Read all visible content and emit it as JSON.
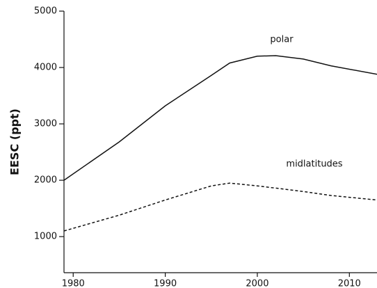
{
  "chart_data": {
    "type": "line",
    "y_label": "EESC (ppt)",
    "x": [
      1979,
      1985,
      1990,
      1995,
      1997,
      2000,
      2002,
      2005,
      2008,
      2013
    ],
    "series": [
      {
        "name": "polar",
        "color": "#111111",
        "style": "solid",
        "values": [
          2000,
          2680,
          3320,
          3860,
          4080,
          4200,
          4210,
          4150,
          4030,
          3880
        ]
      },
      {
        "name": "midlatitudes",
        "color": "#111111",
        "style": "dashed",
        "values": [
          1100,
          1380,
          1650,
          1900,
          1950,
          1900,
          1860,
          1800,
          1730,
          1650
        ]
      }
    ],
    "xlim": [
      1979,
      2013
    ],
    "xticks": [
      1980,
      1990,
      2000,
      2010
    ],
    "ylim": [
      360,
      5000
    ],
    "yticks": [
      1000,
      2000,
      3000,
      4000,
      5000
    ],
    "grid": false
  }
}
